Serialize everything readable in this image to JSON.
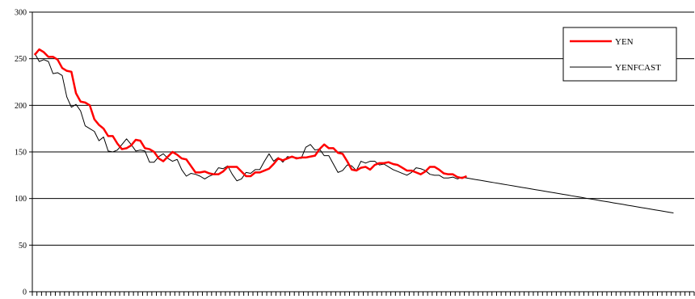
{
  "chart_data": {
    "type": "line",
    "title": "",
    "xlabel": "",
    "ylabel": "",
    "ylim": [
      0,
      300
    ],
    "yticks": [
      0,
      50,
      100,
      150,
      200,
      250,
      300
    ],
    "x_count": 144,
    "grid": "horizontal",
    "legend_position": "top-right",
    "series": [
      {
        "name": "YEN",
        "color": "#ff0000",
        "values": [
          254,
          260,
          257,
          252,
          252,
          249,
          240,
          237,
          236,
          213,
          204,
          203,
          200,
          185,
          179,
          175,
          167,
          167,
          159,
          153,
          154,
          157,
          163,
          162,
          154,
          153,
          150,
          143,
          140,
          145,
          150,
          147,
          143,
          142,
          135,
          128,
          128,
          129,
          127,
          126,
          126,
          129,
          134,
          134,
          134,
          129,
          124,
          124,
          128,
          128,
          130,
          132,
          137,
          143,
          141,
          143,
          145,
          143,
          144,
          144,
          145,
          146,
          153,
          158,
          154,
          154,
          149,
          148,
          140,
          131,
          130,
          133,
          134,
          131,
          136,
          138,
          138,
          139,
          137,
          136,
          133,
          130,
          130,
          128,
          126,
          129,
          134,
          134,
          131,
          127,
          126,
          126,
          123,
          122,
          124
        ]
      },
      {
        "name": "YENFCAST",
        "color": "#000000",
        "values": [
          256,
          247,
          249,
          247,
          234,
          235,
          232,
          209,
          198,
          201,
          194,
          178,
          175,
          172,
          162,
          166,
          151,
          150,
          152,
          158,
          164,
          158,
          151,
          152,
          151,
          139,
          139,
          145,
          148,
          143,
          140,
          142,
          131,
          124,
          127,
          126,
          124,
          121,
          124,
          126,
          133,
          132,
          135,
          126,
          119,
          121,
          128,
          127,
          131,
          131,
          140,
          148,
          140,
          144,
          139,
          145,
          144,
          144,
          143,
          155,
          158,
          152,
          153,
          146,
          146,
          137,
          128,
          130,
          136,
          135,
          130,
          140,
          138,
          140,
          140,
          136,
          137,
          134,
          131,
          129,
          127,
          125,
          128,
          133,
          132,
          130,
          126,
          125,
          125,
          122,
          122,
          123,
          121,
          123,
          122,
          121.2,
          120.3,
          119.5,
          118.7,
          117.8,
          117.0,
          116.2,
          115.3,
          114.5,
          113.7,
          112.8,
          112.0,
          111.2,
          110.3,
          109.5,
          108.7,
          107.8,
          107.0,
          106.2,
          105.3,
          104.5,
          103.7,
          102.8,
          102.0,
          101.2,
          100.3,
          99.5,
          98.7,
          97.8,
          97.0,
          96.2,
          95.3,
          94.5,
          93.7,
          92.8,
          92.0,
          91.2,
          90.3,
          89.5,
          88.7,
          87.8,
          87.0,
          86.2,
          85.3,
          84.5
        ]
      }
    ]
  }
}
